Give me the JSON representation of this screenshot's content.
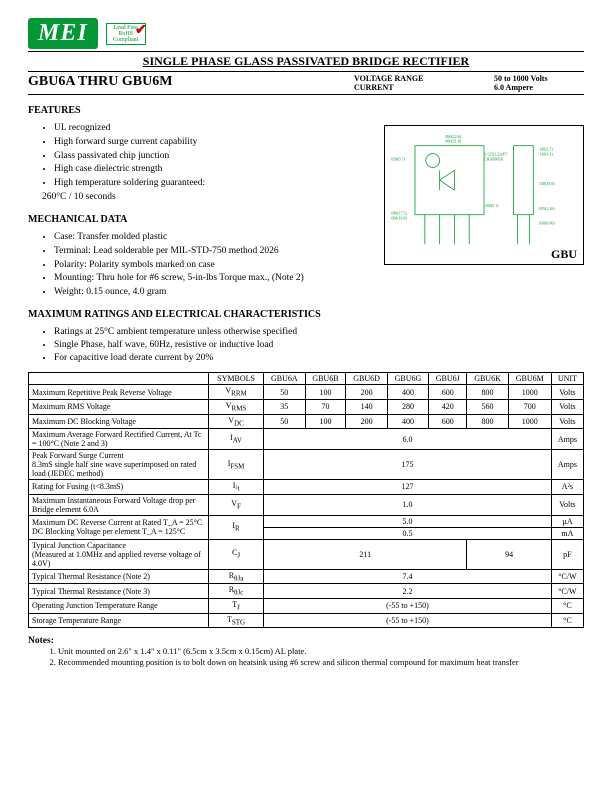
{
  "logo": {
    "text": "MEI",
    "badge_top": "Lead Free",
    "badge_bot": "RoHS Compliant"
  },
  "title": "SINGLE PHASE GLASS PASSIVATED BRIDGE RECTIFIER",
  "header": {
    "part_range": "GBU6A   THRU   GBU6M",
    "vr_label": "VOLTAGE RANGE",
    "cur_label": "CURRENT",
    "vr_val": "50 to 1000 Volts",
    "cur_val": "6.0 Ampere"
  },
  "features": {
    "heading": "FEATURES",
    "items": [
      "UL recognized",
      "High forward surge current capability",
      "Glass passivated chip junction",
      "High case dielectric strength",
      "High temperature soldering guaranteed:",
      "260°C / 10 seconds"
    ]
  },
  "mech": {
    "heading": "MECHANICAL DATA",
    "items": [
      "Case:  Transfer molded plastic",
      "Terminal:  Lead solderable per MIL-STD-750 method 2026",
      "Polarity:  Polarity symbols marked on case",
      "Mounting:  Thru hole for #6 screw, 5-in-lbs Torque max., (Note 2)",
      "Weight:  0.15 ounce, 4.0 gram"
    ]
  },
  "diagram_label": "GBU",
  "max": {
    "heading": "MAXIMUM RATINGS AND ELECTRICAL CHARACTERISTICS",
    "intro": [
      "Ratings at 25°C ambient temperature unless otherwise specified",
      "Single Phase, half wave, 60Hz, resistive or inductive load",
      "For capacitive load derate current by 20%"
    ]
  },
  "table": {
    "head": [
      "SYMBOLS",
      "GBU6A",
      "GBU6B",
      "GBU6D",
      "GBU6G",
      "GBU6J",
      "GBU6K",
      "GBU6M",
      "UNIT"
    ],
    "rows": [
      {
        "label": "Maximum Repetitive Peak Reverse Voltage",
        "sym": "V_RRM",
        "vals": [
          "50",
          "100",
          "200",
          "400",
          "600",
          "800",
          "1000"
        ],
        "unit": "Volts"
      },
      {
        "label": "Maximum RMS Voltage",
        "sym": "V_RMS",
        "vals": [
          "35",
          "70",
          "140",
          "280",
          "420",
          "560",
          "700"
        ],
        "unit": "Volts"
      },
      {
        "label": "Maximum DC Blocking Voltage",
        "sym": "V_DC",
        "vals": [
          "50",
          "100",
          "200",
          "400",
          "600",
          "800",
          "1000"
        ],
        "unit": "Volts"
      },
      {
        "label": "Maximum Average Forward Rectified Current, At Tc = 100°C (Note 2 and 3)",
        "sym": "I_(AV)",
        "span": "6.0",
        "unit": "Amps"
      },
      {
        "label": "Peak Forward Surge Current\n8.3mS single half sine wave superimposed on rated load (JEDEC method)",
        "sym": "I_FSM",
        "span": "175",
        "unit": "Amps"
      },
      {
        "label": "Rating for Fusing (t<8.3mS)",
        "sym": "I²t",
        "span": "127",
        "unit": "A²s"
      },
      {
        "label": "Maximum Instantaneous Forward Voltage drop per Bridge element 6.0A",
        "sym": "V_F",
        "span": "1.0",
        "unit": "Volts"
      },
      {
        "label": "Maximum DC Reverse Current at Rated      T_A = 25°C\nDC Blocking Voltage per element             T_A = 125°C",
        "sym": "I_R",
        "two": [
          "5.0",
          "0.5"
        ],
        "units": [
          "µA",
          "mA"
        ]
      },
      {
        "label": "Typical Junction Capacitance\n(Measured at 1.0MHz and applied reverse voltage of 4.0V)",
        "sym": "C_J",
        "split": [
          "211",
          "94"
        ],
        "split_at": 5,
        "unit": "pF"
      },
      {
        "label": "Typical Thermal Resistance (Note 2)",
        "sym": "R_θJa",
        "span": "7.4",
        "unit": "°C/W"
      },
      {
        "label": "Typical Thermal Resistance (Note 3)",
        "sym": "R_θJc",
        "span": "2.2",
        "unit": "°C/W"
      },
      {
        "label": "Operating Junction Temperature Range",
        "sym": "T_J",
        "span": "(-55 to +150)",
        "unit": "°C"
      },
      {
        "label": "Storage Temperature Range",
        "sym": "T_STG",
        "span": "(-55 to +150)",
        "unit": "°C"
      }
    ]
  },
  "notes": {
    "heading": "Notes:",
    "items": [
      "Unit mounted on 2.6\" x 1.4\" x 0.11\" (6.5cm x 3.5cm x 0.15cm) AL plate.",
      "Recommended mounting position is to bolt down on heatsink using #6 screw and  silicon thermal compound for maximum heat transfer"
    ]
  },
  "colors": {
    "brand_green": "#009933",
    "check_red": "#cc0000"
  }
}
